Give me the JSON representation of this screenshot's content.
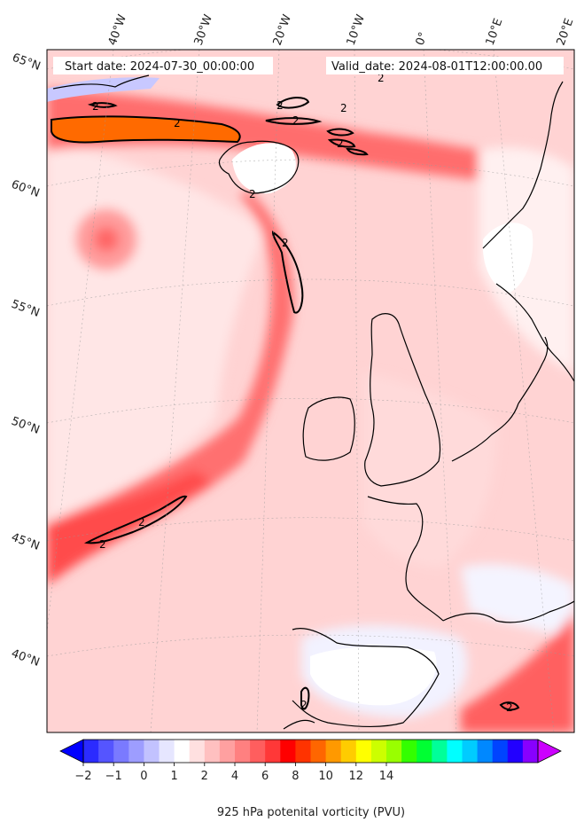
{
  "header": {
    "start_date": "Start date: 2024-07-30_00:00:00",
    "valid_date": "Valid_date: 2024-08-01T12:00:00.00"
  },
  "longitude_labels": [
    "40°W",
    "30°W",
    "20°W",
    "10°W",
    "0°",
    "10°E",
    "20°E"
  ],
  "latitude_labels": [
    "65°N",
    "60°N",
    "55°N",
    "50°N",
    "45°N",
    "40°N"
  ],
  "contour_label": "2",
  "colorbar": {
    "label": "925 hPa potenital vorticity (PVU)",
    "tick_labels": [
      "−2",
      "−1",
      "0",
      "1",
      "2",
      "4",
      "6",
      "8",
      "10",
      "12",
      "14"
    ],
    "colors": [
      "#0000ff",
      "#2b2bff",
      "#5555ff",
      "#7a7aff",
      "#9d9dff",
      "#c2c2ff",
      "#e6e6ff",
      "#ffffff",
      "#ffe0e0",
      "#ffc0c0",
      "#ffa0a0",
      "#ff8080",
      "#ff5e5e",
      "#ff3838",
      "#ff0000",
      "#ff3300",
      "#ff6600",
      "#ff9900",
      "#ffcc00",
      "#ffff00",
      "#ccff00",
      "#99ff00",
      "#33ff00",
      "#00ff33",
      "#00ff99",
      "#00ffff",
      "#00ccff",
      "#0088ff",
      "#0044ff",
      "#2200ff",
      "#8800ff",
      "#cc00ff"
    ]
  }
}
